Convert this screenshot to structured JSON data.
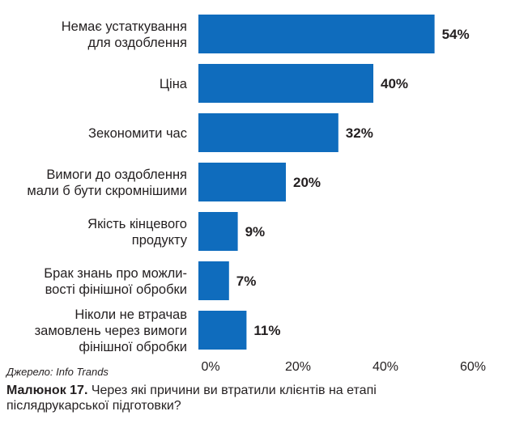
{
  "chart_data": {
    "type": "bar",
    "orientation": "horizontal",
    "categories": [
      [
        "Немає устаткування",
        "для оздоблення"
      ],
      [
        "Ціна"
      ],
      [
        "Зекономити час"
      ],
      [
        "Вимоги до оздоблення",
        "мали б бути скромнішими"
      ],
      [
        "Якість кінцевого",
        "продукту"
      ],
      [
        "Брак знань про можли-",
        "вості фінішної обробки"
      ],
      [
        "Ніколи не втрачав",
        "замовлень через вимоги",
        "фінішної обробки"
      ]
    ],
    "values": [
      54,
      40,
      32,
      20,
      9,
      7,
      11
    ],
    "value_labels": [
      "54%",
      "40%",
      "32%",
      "20%",
      "9%",
      "7%",
      "11%"
    ],
    "xlim": [
      0,
      60
    ],
    "xticks": [
      "0%",
      "20%",
      "40%",
      "60%"
    ],
    "grid": false,
    "bar_color": "#0f6cbd"
  },
  "source": "Джерело: Info Trands",
  "caption": {
    "label": "Малюнок 17.",
    "text": " Через які причини ви втратили клієнтів на етапі післядрукарської підготовки?"
  }
}
